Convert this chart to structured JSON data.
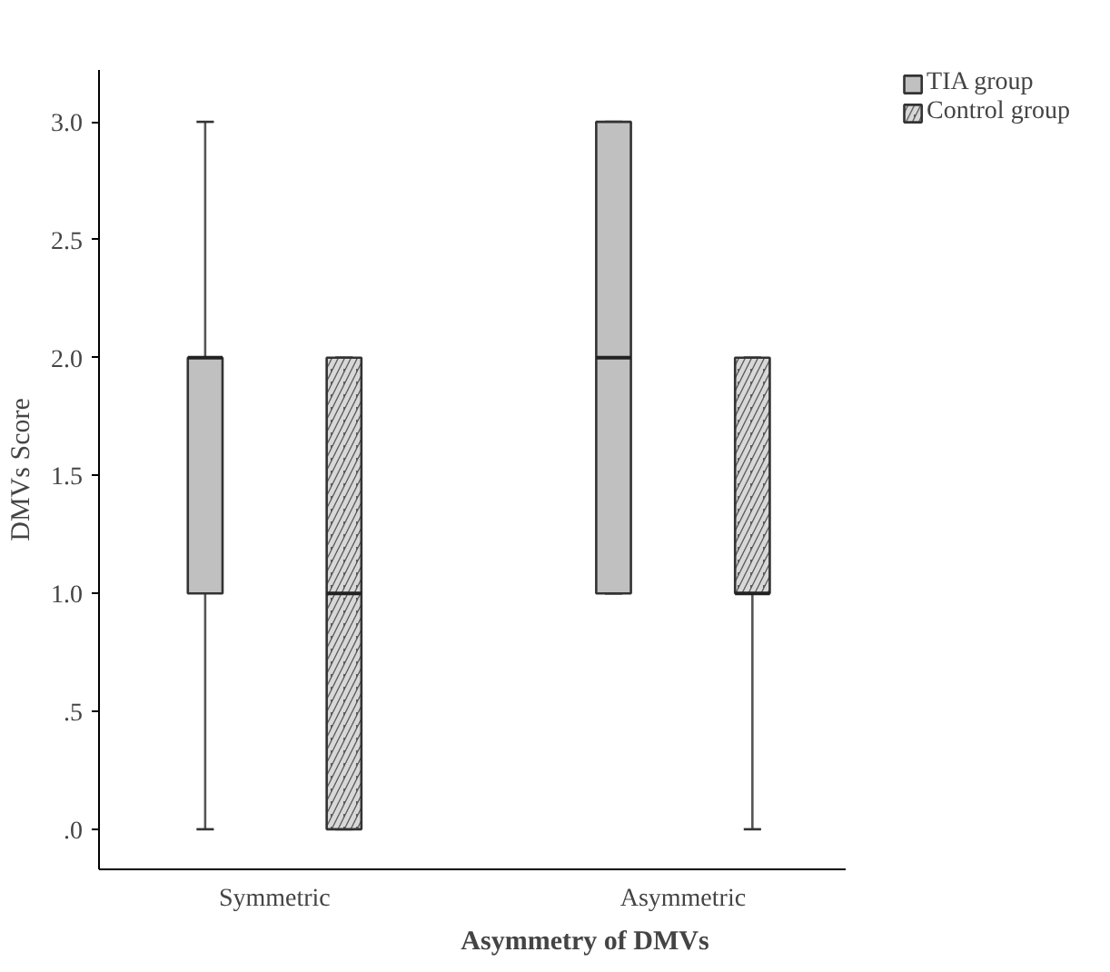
{
  "chart_data": {
    "type": "box",
    "xlabel": "Asymmetry of DMVs",
    "ylabel": "DMVs Score",
    "categories": [
      "Symmetric",
      "Asymmetric"
    ],
    "series": [
      {
        "name": "TIA group",
        "color": "#c0c0c0",
        "boxes": [
          {
            "low": 0,
            "q1": 1,
            "median": 2,
            "q3": 2,
            "high": 3
          },
          {
            "low": 1,
            "q1": 1,
            "median": 2,
            "q3": 3,
            "high": 3
          }
        ]
      },
      {
        "name": "Control group",
        "color": "#5a5a5a",
        "boxes": [
          {
            "low": 0,
            "q1": 0,
            "median": 1,
            "q3": 2,
            "high": 2
          },
          {
            "low": 0,
            "q1": 1,
            "median": 1,
            "q3": 2,
            "high": 2
          }
        ]
      }
    ],
    "ylim": [
      -0.17,
      3.22
    ],
    "yticks": [
      {
        "value": 0,
        "label": ".0"
      },
      {
        "value": 0.5,
        "label": ".5"
      },
      {
        "value": 1,
        "label": "1.0"
      },
      {
        "value": 1.5,
        "label": "1.5"
      },
      {
        "value": 2,
        "label": "2.0"
      },
      {
        "value": 2.5,
        "label": "2.5"
      },
      {
        "value": 3,
        "label": "3.0"
      }
    ],
    "grid": false,
    "legend": "top right"
  }
}
